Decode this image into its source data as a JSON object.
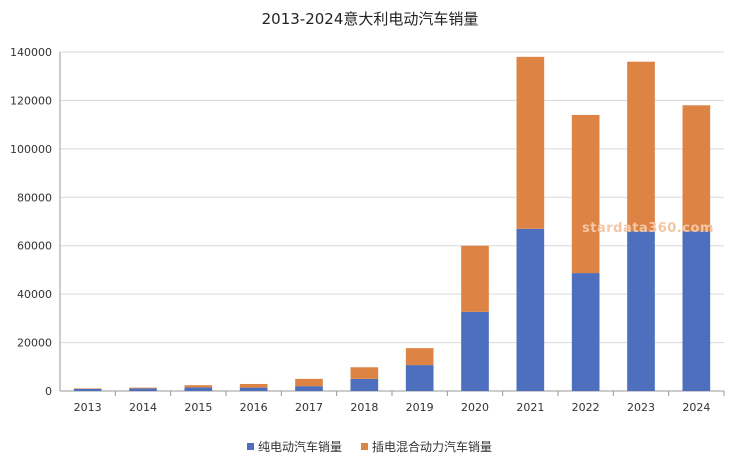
{
  "chart_data": {
    "type": "bar",
    "stacked": true,
    "title": "2013-2024意大利电动汽车销量",
    "categories": [
      "2013",
      "2014",
      "2015",
      "2016",
      "2017",
      "2018",
      "2019",
      "2020",
      "2021",
      "2022",
      "2023",
      "2024"
    ],
    "series": [
      {
        "name": "纯电动汽车销量",
        "color": "#4e6fbd",
        "values": [
          900,
          1100,
          1500,
          1400,
          2000,
          5000,
          10700,
          32700,
          67000,
          48700,
          66000,
          66000
        ]
      },
      {
        "name": "插电混合动力汽车销量",
        "color": "#dd8444",
        "values": [
          200,
          300,
          900,
          1500,
          3000,
          4800,
          7000,
          27300,
          71000,
          65300,
          70000,
          52000
        ]
      }
    ],
    "ylim": [
      0,
      140000
    ],
    "yticks": [
      "0",
      "20000",
      "40000",
      "60000",
      "80000",
      "100000",
      "120000",
      "140000"
    ],
    "grid": true,
    "legend": "bottom",
    "watermark": "stardata360.com"
  }
}
